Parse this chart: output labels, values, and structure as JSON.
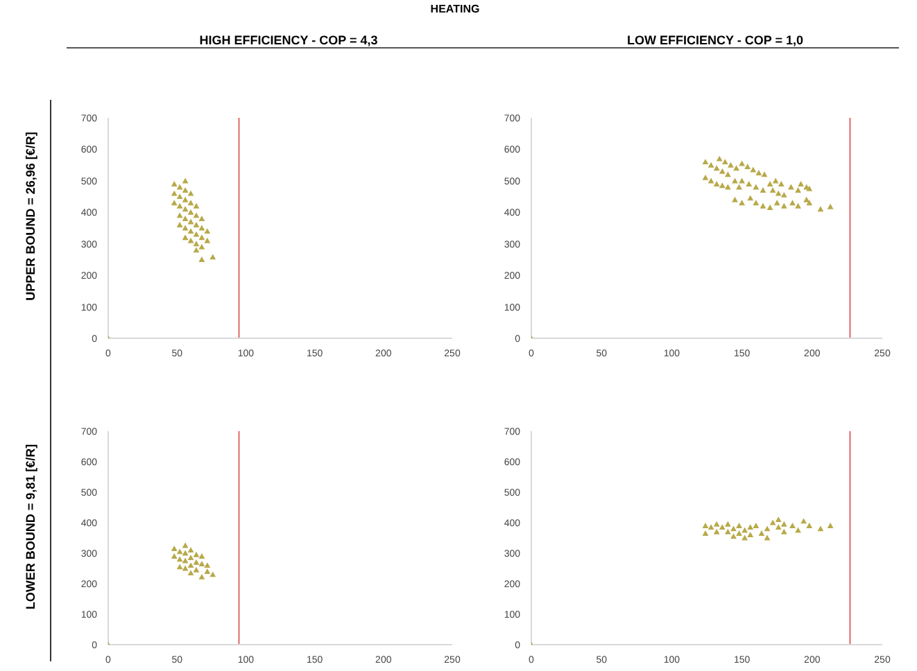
{
  "chart_data": [
    {
      "type": "scatter",
      "title": "HIGH EFFICIENCY - COP = 4,3",
      "ylabel": "UPPER BOUND = 26,96 [€/R]",
      "annotations": [
        "HEATING"
      ],
      "marker": "triangle",
      "grid": false,
      "xlim": [
        0,
        250
      ],
      "xticks": [
        0,
        50,
        100,
        150,
        200,
        250
      ],
      "ylim": [
        0,
        700
      ],
      "yticks": [
        0,
        100,
        200,
        300,
        400,
        500,
        600,
        700
      ],
      "ref_lines": [
        {
          "axis": "x",
          "value": 95,
          "color": "#e06666"
        }
      ],
      "series": [
        {
          "color": "#b8a94a",
          "x": [
            48,
            48,
            48,
            52,
            52,
            52,
            52,
            52,
            56,
            56,
            56,
            56,
            56,
            56,
            56,
            60,
            60,
            60,
            60,
            60,
            60,
            64,
            64,
            64,
            64,
            64,
            64,
            68,
            68,
            68,
            68,
            68,
            72,
            72,
            76,
            0
          ],
          "values": [
            490,
            460,
            430,
            480,
            450,
            420,
            390,
            360,
            500,
            470,
            440,
            410,
            380,
            350,
            320,
            460,
            430,
            400,
            370,
            340,
            310,
            420,
            390,
            360,
            330,
            300,
            280,
            380,
            350,
            320,
            290,
            250,
            340,
            310,
            258,
            0
          ]
        }
      ]
    },
    {
      "type": "scatter",
      "title": "LOW EFFICIENCY - COP = 1,0",
      "marker": "triangle",
      "grid": false,
      "xlim": [
        0,
        250
      ],
      "xticks": [
        0,
        50,
        100,
        150,
        200,
        250
      ],
      "ylim": [
        0,
        700
      ],
      "yticks": [
        0,
        100,
        200,
        300,
        400,
        500,
        600,
        700
      ],
      "ref_lines": [
        {
          "axis": "x",
          "value": 227,
          "color": "#e06666"
        }
      ],
      "series": [
        {
          "color": "#b8a94a",
          "x": [
            124,
            128,
            132,
            136,
            140,
            134,
            138,
            142,
            146,
            124,
            128,
            132,
            136,
            140,
            150,
            154,
            158,
            162,
            166,
            150,
            155,
            160,
            165,
            145,
            148,
            170,
            174,
            178,
            172,
            176,
            180,
            185,
            190,
            192,
            196,
            198,
            145,
            150,
            156,
            160,
            165,
            170,
            175,
            180,
            186,
            190,
            196,
            198,
            206,
            213,
            0
          ],
          "values": [
            560,
            550,
            540,
            530,
            520,
            570,
            560,
            550,
            540,
            510,
            500,
            490,
            485,
            480,
            555,
            545,
            535,
            525,
            520,
            500,
            490,
            480,
            470,
            500,
            480,
            490,
            500,
            490,
            470,
            460,
            455,
            480,
            470,
            490,
            480,
            475,
            440,
            430,
            445,
            430,
            420,
            415,
            430,
            420,
            430,
            420,
            440,
            430,
            410,
            418,
            0
          ]
        }
      ]
    },
    {
      "type": "scatter",
      "ylabel": "LOWER BOUND = 9,81 [€/R]",
      "marker": "triangle",
      "grid": false,
      "xlim": [
        0,
        250
      ],
      "xticks": [
        0,
        50,
        100,
        150,
        200,
        250
      ],
      "ylim": [
        0,
        700
      ],
      "yticks": [
        0,
        100,
        200,
        300,
        400,
        500,
        600,
        700
      ],
      "ref_lines": [
        {
          "axis": "x",
          "value": 95,
          "color": "#e06666"
        }
      ],
      "series": [
        {
          "color": "#b8a94a",
          "x": [
            48,
            48,
            52,
            52,
            52,
            56,
            56,
            56,
            56,
            60,
            60,
            60,
            60,
            64,
            64,
            64,
            68,
            68,
            68,
            72,
            72,
            76,
            0
          ],
          "values": [
            315,
            290,
            305,
            280,
            255,
            325,
            300,
            275,
            250,
            310,
            285,
            260,
            235,
            295,
            270,
            245,
            290,
            265,
            222,
            260,
            240,
            230,
            0
          ]
        }
      ]
    },
    {
      "type": "scatter",
      "marker": "triangle",
      "grid": false,
      "xlim": [
        0,
        250
      ],
      "xticks": [
        0,
        50,
        100,
        150,
        200,
        250
      ],
      "ylim": [
        0,
        700
      ],
      "yticks": [
        0,
        100,
        200,
        300,
        400,
        500,
        600,
        700
      ],
      "ref_lines": [
        {
          "axis": "x",
          "value": 227,
          "color": "#e06666"
        }
      ],
      "series": [
        {
          "color": "#b8a94a",
          "x": [
            124,
            124,
            128,
            132,
            132,
            136,
            140,
            140,
            144,
            144,
            148,
            148,
            152,
            152,
            156,
            156,
            160,
            164,
            168,
            168,
            172,
            176,
            176,
            180,
            180,
            186,
            190,
            194,
            198,
            206,
            213,
            0
          ],
          "values": [
            390,
            365,
            385,
            395,
            370,
            385,
            395,
            370,
            380,
            355,
            390,
            365,
            375,
            350,
            385,
            360,
            390,
            365,
            380,
            350,
            400,
            410,
            385,
            395,
            370,
            390,
            375,
            405,
            390,
            380,
            390,
            0
          ]
        }
      ]
    }
  ]
}
